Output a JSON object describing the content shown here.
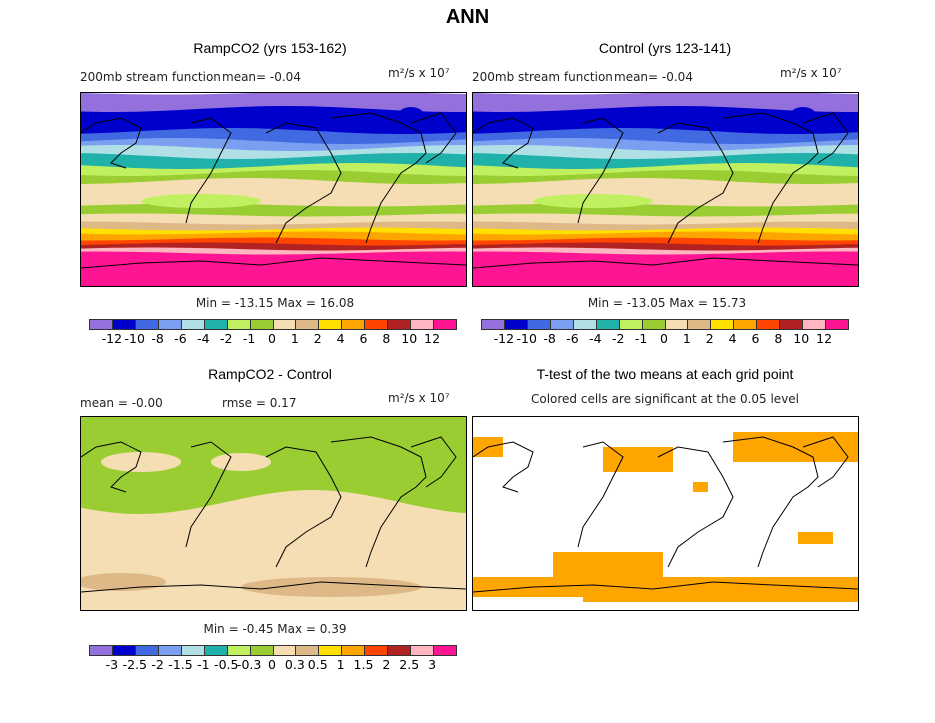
{
  "title": "ANN",
  "colors": [
    "#9370db",
    "#0000cd",
    "#4169e1",
    "#7b9ff0",
    "#b0e0e6",
    "#20b2aa",
    "#c0f060",
    "#9acd32",
    "#f5deb3",
    "#deb887",
    "#ffe000",
    "#ffa500",
    "#ff4500",
    "#b22222",
    "#ffb6c1",
    "#ff1493"
  ],
  "panels": [
    {
      "title": "RampCO2 (yrs 153-162)",
      "left_label": "200mb stream function",
      "mean_label": "mean=  -0.04",
      "units": "m²/s x 10⁷",
      "stats": "Min = -13.15 Max =  16.08"
    },
    {
      "title": "Control (yrs 123-141)",
      "left_label": "200mb stream function",
      "mean_label": "mean=  -0.04",
      "units": "m²/s x 10⁷",
      "stats": "Min = -13.05 Max =  15.73"
    },
    {
      "title": "RampCO2 - Control",
      "left_label": "mean =   -0.00",
      "mean_label": "rmse =    0.17",
      "units": "m²/s x 10⁷",
      "stats": "Min =  -0.45 Max =   0.39"
    },
    {
      "title": "T-test of the two means at each grid point",
      "subtitle": "Colored cells are significant at the 0.05 level",
      "sig_color": "#ffa500"
    }
  ],
  "levels_main": [
    "-12",
    "-10",
    "-8",
    "-6",
    "-4",
    "-2",
    "-1",
    "0",
    "1",
    "2",
    "4",
    "6",
    "8",
    "10",
    "12"
  ],
  "levels_diff": [
    "-3",
    "-2.5",
    "-2",
    "-1.5",
    "-1",
    "-0.5",
    "-0.3",
    "0",
    "0.3",
    "0.5",
    "1",
    "1.5",
    "2",
    "2.5",
    "3"
  ]
}
